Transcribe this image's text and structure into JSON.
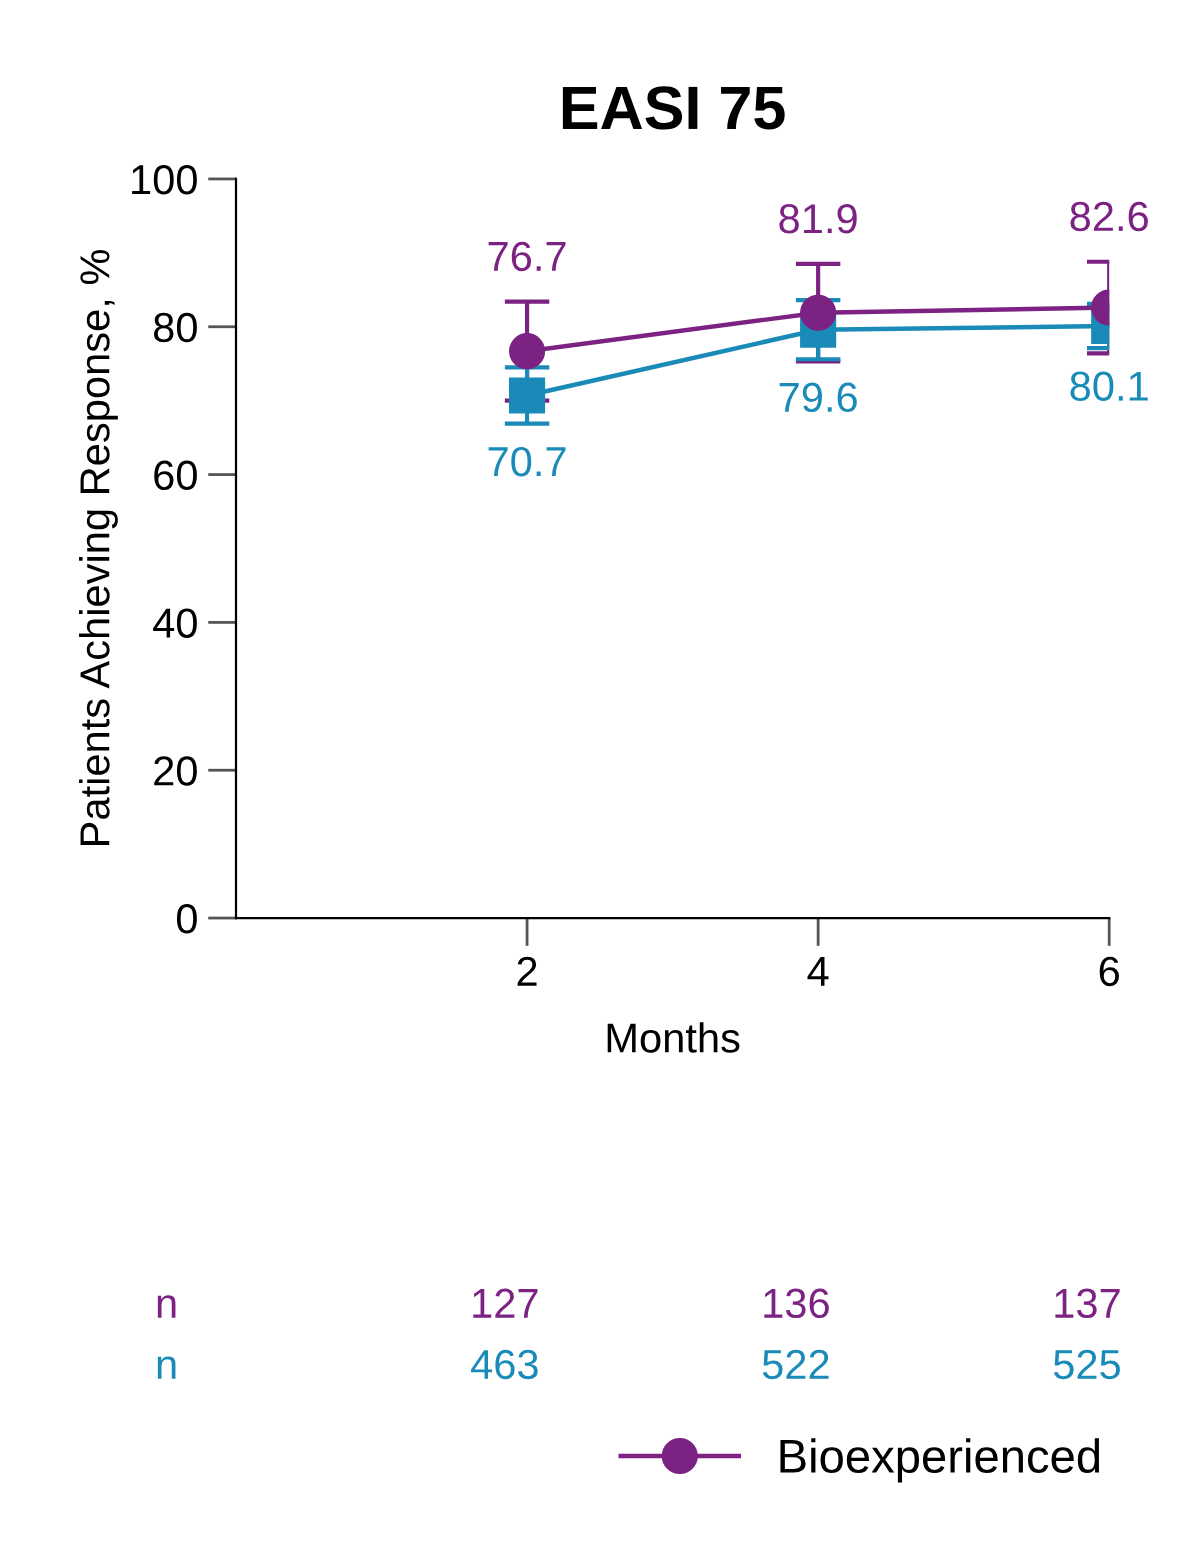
{
  "chart_data": {
    "type": "line",
    "title": "EASI 75",
    "xlabel": "Months",
    "ylabel": "Patients Achieving Response, %",
    "x": [
      2,
      4,
      6
    ],
    "xlim": [
      0,
      6
    ],
    "xticks": [
      2,
      4,
      6
    ],
    "ylim": [
      0,
      100
    ],
    "yticks": [
      0,
      20,
      40,
      60,
      80,
      100
    ],
    "series": [
      {
        "name": "Bioexperienced",
        "color": "#7b2283",
        "marker": "circle",
        "values": [
          76.7,
          81.9,
          82.6
        ],
        "errors": [
          6.7,
          6.6,
          6.2
        ]
      },
      {
        "color": "#1a8ab8",
        "marker": "square",
        "values": [
          70.7,
          79.6,
          80.1
        ],
        "errors": [
          3.8,
          4.0,
          3.0
        ]
      }
    ],
    "data_labels": true,
    "grid": false,
    "legend": "bottom right",
    "line_style": "solid",
    "annotations": [
      "n",
      "127",
      "136",
      "137",
      "n",
      "463",
      "522",
      "525"
    ]
  }
}
